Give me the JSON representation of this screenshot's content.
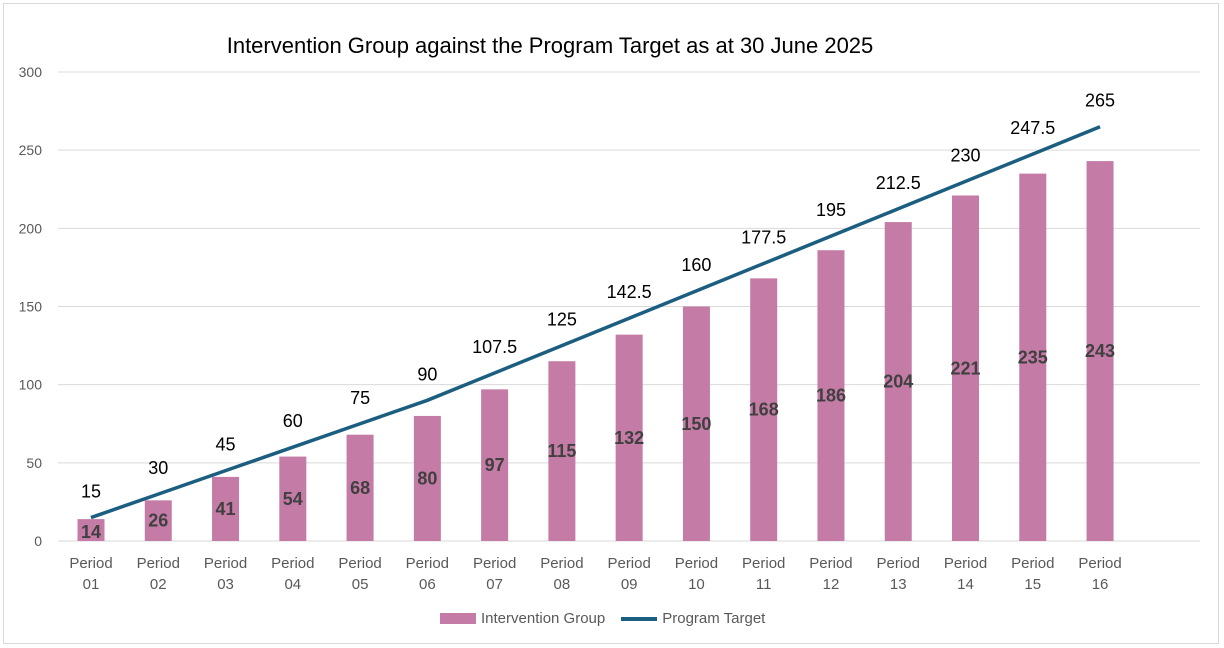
{
  "chart_data": {
    "type": "bar+line",
    "title": "Intervention Group against the Program Target as at 30 June 2025",
    "categories": [
      "Period 01",
      "Period 02",
      "Period 03",
      "Period 04",
      "Period 05",
      "Period 06",
      "Period 07",
      "Period 08",
      "Period 09",
      "Period 10",
      "Period 11",
      "Period 12",
      "Period 13",
      "Period 14",
      "Period 15",
      "Period 16"
    ],
    "series": [
      {
        "name": "Intervention Group",
        "type": "bar",
        "color": "#c47ba6",
        "values": [
          14,
          26,
          41,
          54,
          68,
          80,
          97,
          115,
          132,
          150,
          168,
          186,
          204,
          221,
          235,
          243
        ]
      },
      {
        "name": "Program Target",
        "type": "line",
        "color": "#1b5e80",
        "values": [
          15,
          30,
          45,
          60,
          75,
          90,
          107.5,
          125,
          142.5,
          160,
          177.5,
          195,
          212.5,
          230,
          247.5,
          265
        ]
      }
    ],
    "ylim": [
      0,
      300
    ],
    "yticks": [
      0,
      50,
      100,
      150,
      200,
      250,
      300
    ],
    "grid": true,
    "legend": "bottom"
  }
}
